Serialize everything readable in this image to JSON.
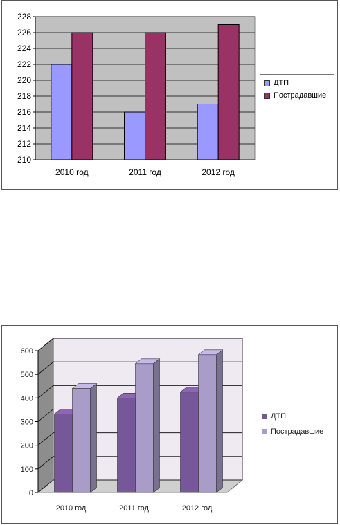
{
  "colors": {
    "chart1_dtp": "#9999ff",
    "chart1_victims": "#993366",
    "chart1_plot_bg": "#c0c0c0",
    "chart2_dtp": "#76579a",
    "chart2_victims": "#a99cc8"
  },
  "chart_data": [
    {
      "type": "bar",
      "categories": [
        "2010 год",
        "2011 год",
        "2012 год"
      ],
      "series": [
        {
          "name": "ДТП",
          "values": [
            222,
            216,
            217
          ]
        },
        {
          "name": "Пострадавшие",
          "values": [
            226,
            226,
            227
          ]
        }
      ],
      "ylim": [
        210,
        228
      ],
      "yticks": [
        "210",
        "212",
        "214",
        "216",
        "218",
        "220",
        "222",
        "224",
        "226",
        "228"
      ],
      "grid": true,
      "legend": "right"
    },
    {
      "type": "bar",
      "style": "3d",
      "categories": [
        "2010 год",
        "2011 год",
        "2012 год"
      ],
      "series": [
        {
          "name": "ДТП",
          "values": [
            332,
            400,
            425
          ]
        },
        {
          "name": "Пострадавшие",
          "values": [
            440,
            545,
            583
          ]
        }
      ],
      "ylim": [
        0,
        600
      ],
      "yticks": [
        "0",
        "100",
        "200",
        "300",
        "400",
        "500",
        "600"
      ],
      "grid": true,
      "legend": "right"
    }
  ]
}
